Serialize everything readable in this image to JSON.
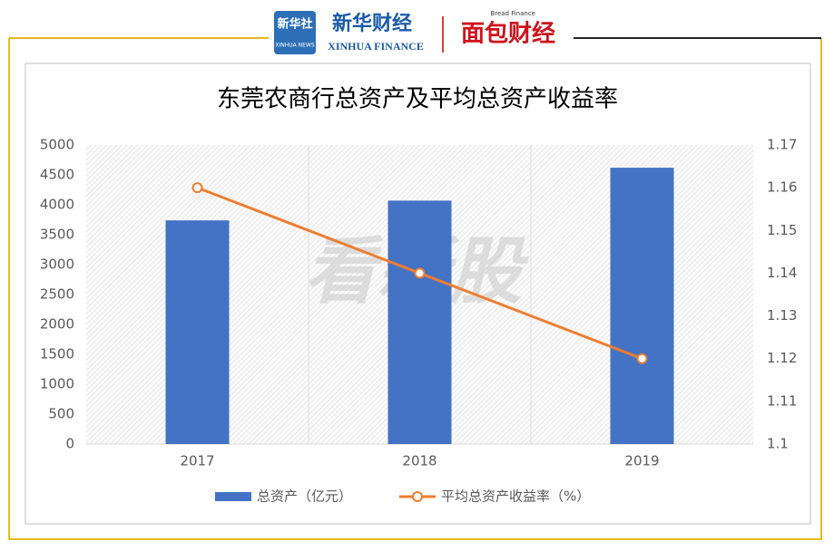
{
  "header": {
    "logo1": "新华社",
    "logo1_sub": "XINHUA NEWS",
    "logo2": "新华财经",
    "logo2_sub": "XINHUA FINANCE",
    "logo3_sub": "Bread Finance",
    "logo3": "面包财经",
    "watermark": "看新股"
  },
  "chart_data": {
    "type": "bar",
    "title": "东莞农商行总资产及平均总资产收益率",
    "categories": [
      "2017",
      "2018",
      "2019"
    ],
    "series": [
      {
        "name": "总资产（亿元）",
        "type": "bar",
        "color": "#4472c4",
        "values": [
          3740,
          4070,
          4620
        ]
      },
      {
        "name": "平均总资产收益率（%）",
        "type": "line",
        "axis": "y2",
        "color": "#ed7d31",
        "values": [
          1.16,
          1.14,
          1.12
        ]
      }
    ],
    "ylim": [
      0,
      5000
    ],
    "yticks": [
      0,
      500,
      1000,
      1500,
      2000,
      2500,
      3000,
      3500,
      4000,
      4500,
      5000
    ],
    "y2lim": [
      1.1,
      1.17
    ],
    "y2ticks": [
      1.1,
      1.11,
      1.12,
      1.13,
      1.14,
      1.15,
      1.16,
      1.17
    ],
    "legend": "bottom"
  }
}
